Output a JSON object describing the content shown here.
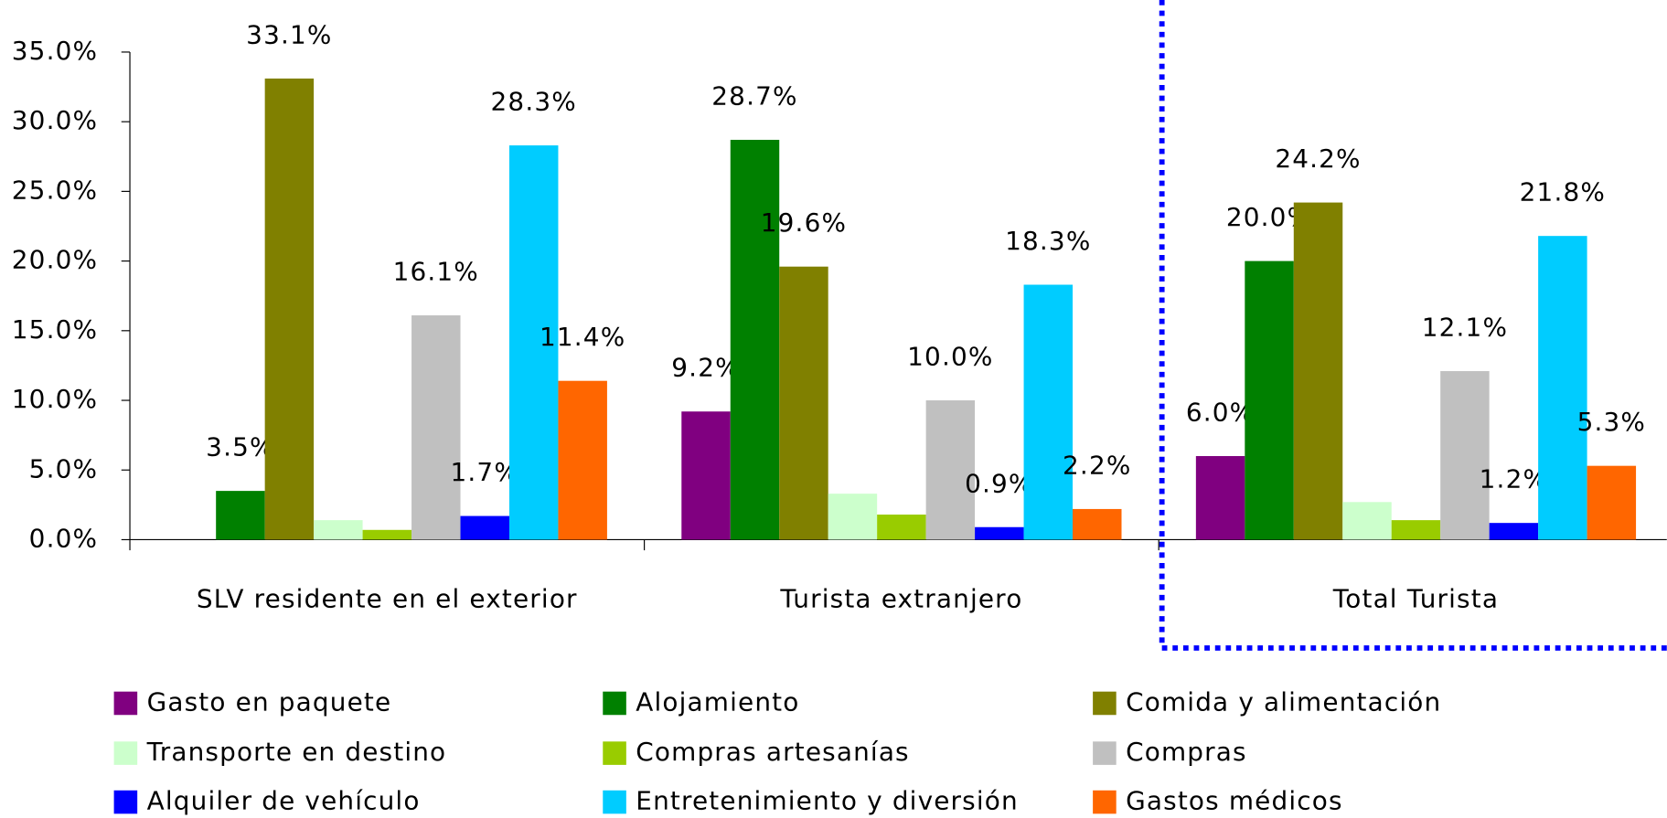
{
  "chart_data": {
    "type": "bar",
    "categories": [
      "SLV residente en el exterior",
      "Turista extranjero",
      "Total Turista"
    ],
    "series": [
      {
        "name": "Gasto en paquete",
        "color": "#800080",
        "values": [
          0,
          9.2,
          6.0
        ],
        "value_labels": [
          null,
          "9.2%",
          "6.0%"
        ]
      },
      {
        "name": "Alojamiento",
        "color": "#008000",
        "values": [
          3.5,
          28.7,
          20.0
        ],
        "value_labels": [
          "3.5%",
          "28.7%",
          "20.0%"
        ]
      },
      {
        "name": "Comida y alimentación",
        "color": "#808000",
        "values": [
          33.1,
          19.6,
          24.2
        ],
        "value_labels": [
          "33.1%",
          "19.6%",
          "24.2%"
        ]
      },
      {
        "name": "Transporte en destino",
        "color": "#ccffcc",
        "values": [
          1.4,
          3.3,
          2.7
        ],
        "value_labels": [
          null,
          null,
          null
        ]
      },
      {
        "name": "Compras artesanías",
        "color": "#99cc00",
        "values": [
          0.7,
          1.8,
          1.4
        ],
        "value_labels": [
          null,
          null,
          null
        ]
      },
      {
        "name": "Compras",
        "color": "#c0c0c0",
        "values": [
          16.1,
          10.0,
          12.1
        ],
        "value_labels": [
          "16.1%",
          "10.0%",
          "12.1%"
        ]
      },
      {
        "name": "Alquiler de vehículo",
        "color": "#0000ff",
        "values": [
          1.7,
          0.9,
          1.2
        ],
        "value_labels": [
          "1.7%",
          "0.9%",
          "1.2%"
        ]
      },
      {
        "name": "Entretenimiento y diversión",
        "color": "#00ccff",
        "values": [
          28.3,
          18.3,
          21.8
        ],
        "value_labels": [
          "28.3%",
          "18.3%",
          "21.8%"
        ]
      },
      {
        "name": "Gastos médicos",
        "color": "#ff6600",
        "values": [
          11.4,
          2.2,
          5.3
        ],
        "value_labels": [
          "11.4%",
          "2.2%",
          "5.3%"
        ]
      }
    ],
    "ylim": [
      0,
      35
    ],
    "yticks": [
      {
        "value": 0,
        "label": "0.0%"
      },
      {
        "value": 5,
        "label": "5.0%"
      },
      {
        "value": 10,
        "label": "10.0%"
      },
      {
        "value": 15,
        "label": "15.0%"
      },
      {
        "value": 20,
        "label": "20.0%"
      },
      {
        "value": 25,
        "label": "25.0%"
      },
      {
        "value": 30,
        "label": "30.0%"
      },
      {
        "value": 35,
        "label": "35.0%"
      }
    ],
    "legend": "bottom"
  }
}
